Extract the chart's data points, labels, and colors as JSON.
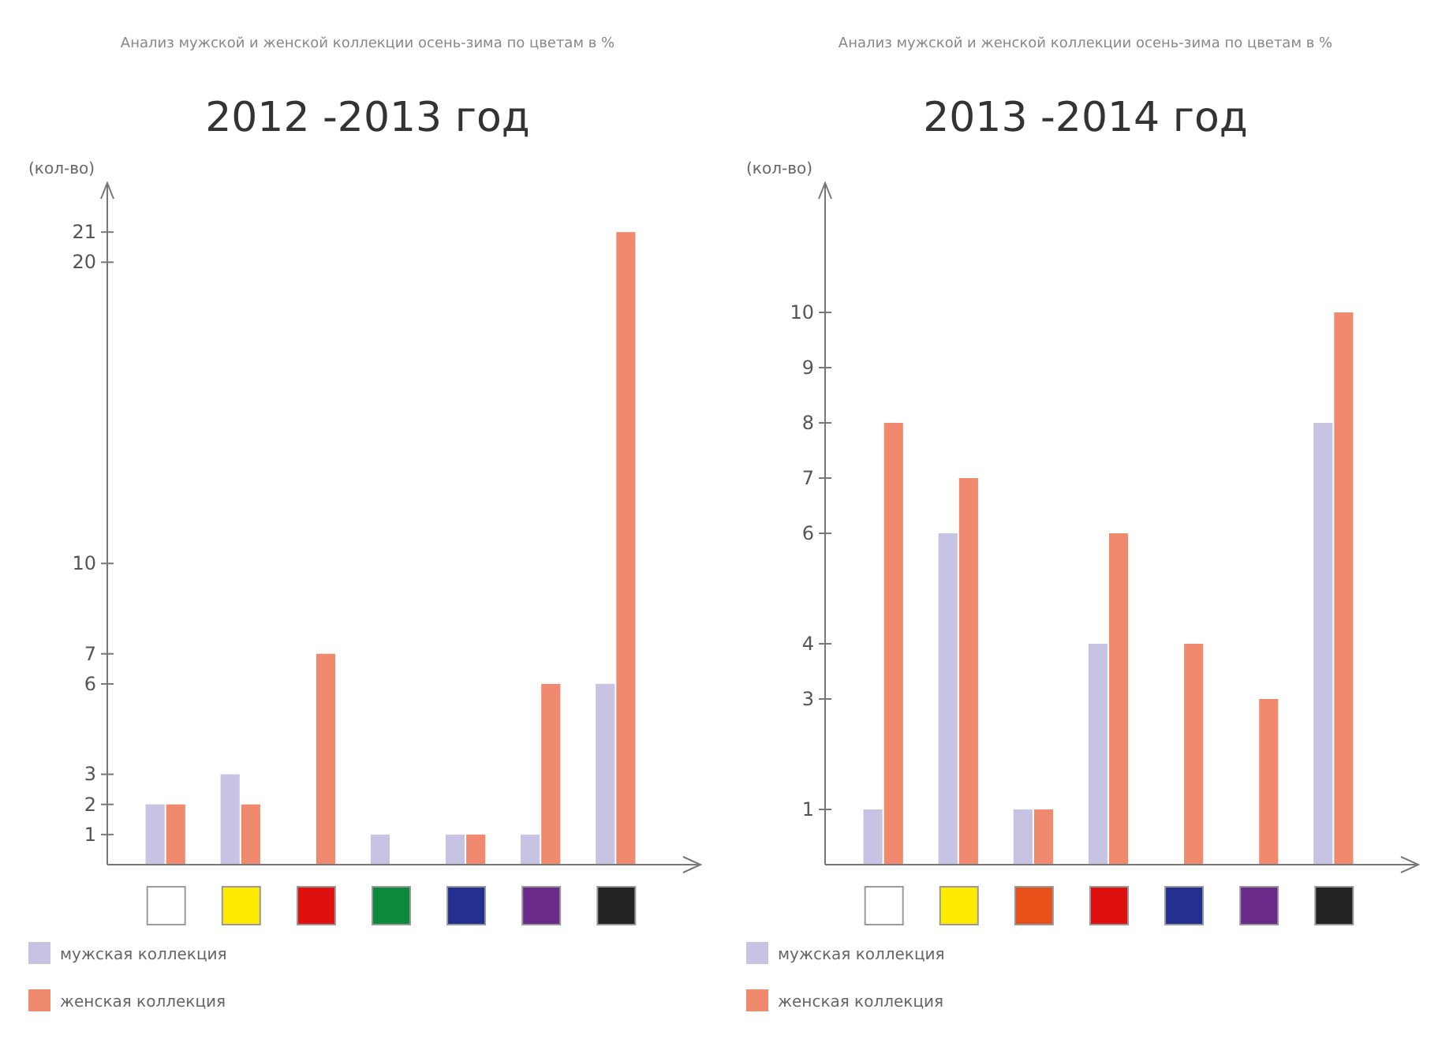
{
  "chart_data": [
    {
      "type": "bar",
      "subtitle": "Анализ мужской и женской коллекции осень-зима по цветам в %",
      "title": "2012 -2013 год",
      "ylabel": "(кол-во)",
      "categories": [
        null,
        null,
        null,
        null,
        null,
        null,
        null
      ],
      "series": [
        {
          "name": "мужская коллекция",
          "color": "#c6c3e3",
          "values": [
            2,
            3,
            0,
            1,
            1,
            1,
            6
          ]
        },
        {
          "name": "женская коллекция",
          "color": "#ef8a6f",
          "values": [
            2,
            2,
            7,
            0,
            1,
            6,
            21
          ]
        }
      ],
      "ylim": [
        0,
        22
      ],
      "yticks": [
        1,
        2,
        3,
        6,
        7,
        10,
        20,
        21
      ],
      "grid": false,
      "legend": "bottom left"
    },
    {
      "type": "bar",
      "subtitle": "Анализ мужской и женской коллекции осень-зима по цветам в %",
      "title": "2013 -2014 год",
      "ylabel": "(кол-во)",
      "categories": [
        null,
        null,
        null,
        null,
        null,
        null,
        null
      ],
      "series": [
        {
          "name": "мужская коллекция",
          "color": "#c6c3e3",
          "values": [
            1,
            6,
            1,
            4,
            0,
            0,
            8
          ]
        },
        {
          "name": "женская коллекция",
          "color": "#ef8a6f",
          "values": [
            8,
            7,
            1,
            6,
            4,
            3,
            10
          ]
        }
      ],
      "ylim": [
        0,
        12
      ],
      "yticks": [
        1,
        3,
        4,
        6,
        7,
        8,
        9,
        10
      ],
      "grid": false,
      "legend": "bottom left"
    }
  ]
}
